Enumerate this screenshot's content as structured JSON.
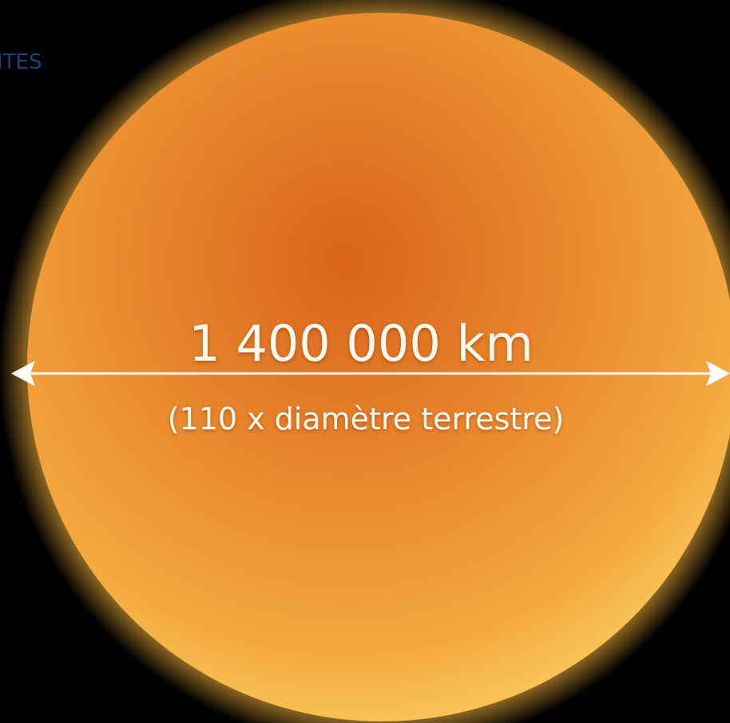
{
  "corner_label": "ITES",
  "measurement": {
    "value_text": "1 400 000 km",
    "note": "(110 x diamètre terrestre)"
  }
}
